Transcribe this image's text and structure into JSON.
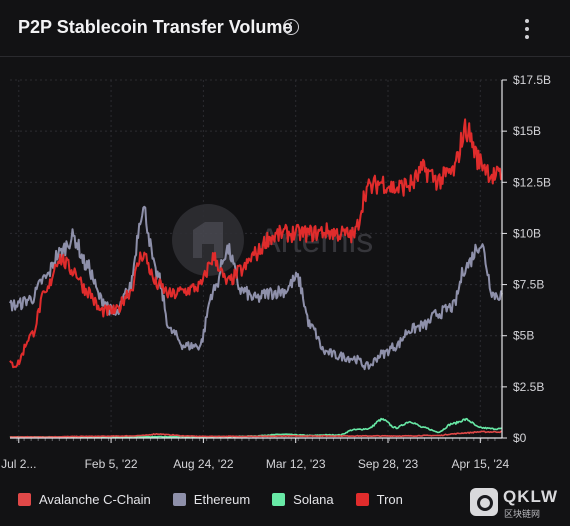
{
  "header": {
    "title": "P2P Stablecoin Transfer Volume",
    "info_icon": "info-circle-icon",
    "menu_icon": "more-vertical-icon"
  },
  "watermark": {
    "text": "Artemis",
    "badge": "QKLW",
    "badge_sub": "区块链网"
  },
  "chart_data": {
    "type": "line",
    "title": "P2P Stablecoin Transfer Volume",
    "x_ticks": [
      "Jul 2...",
      "Feb 5, '22",
      "Aug 24, '22",
      "Mar 12, '23",
      "Sep 28, '23",
      "Apr 15, '24"
    ],
    "x_tick_dates": [
      "2021-07-20",
      "2022-02-05",
      "2022-08-24",
      "2023-03-12",
      "2023-09-28",
      "2024-04-15"
    ],
    "x_range": [
      "2021-07-01",
      "2024-06-01"
    ],
    "y_ticks": [
      "$0",
      "$2.5B",
      "$5B",
      "$7.5B",
      "$10B",
      "$12.5B",
      "$15B",
      "$17.5B"
    ],
    "ylim": [
      0,
      17.5
    ],
    "y_unit": "$B",
    "grid": true,
    "legend_position": "bottom-left",
    "x": [
      "2021-07",
      "2021-08",
      "2021-09",
      "2021-10",
      "2021-11",
      "2021-12",
      "2022-01",
      "2022-02",
      "2022-03",
      "2022-04",
      "2022-05",
      "2022-06",
      "2022-07",
      "2022-08",
      "2022-09",
      "2022-10",
      "2022-11",
      "2022-12",
      "2023-01",
      "2023-02",
      "2023-03",
      "2023-04",
      "2023-05",
      "2023-06",
      "2023-07",
      "2023-08",
      "2023-09",
      "2023-10",
      "2023-11",
      "2023-12",
      "2024-01",
      "2024-02",
      "2024-03",
      "2024-04",
      "2024-05"
    ],
    "series": [
      {
        "name": "Avalanche C-Chain",
        "color": "#e04848",
        "values": [
          0.05,
          0.05,
          0.05,
          0.06,
          0.07,
          0.08,
          0.08,
          0.09,
          0.1,
          0.12,
          0.2,
          0.15,
          0.1,
          0.08,
          0.08,
          0.08,
          0.08,
          0.08,
          0.08,
          0.1,
          0.1,
          0.1,
          0.1,
          0.1,
          0.1,
          0.1,
          0.1,
          0.1,
          0.1,
          0.12,
          0.12,
          0.2,
          0.25,
          0.3,
          0.3
        ]
      },
      {
        "name": "Ethereum",
        "color": "#8e90aa",
        "values": [
          6.5,
          6.8,
          7.8,
          9.0,
          9.8,
          8.4,
          6.8,
          6.0,
          7.2,
          11.2,
          8.0,
          5.2,
          4.5,
          4.5,
          7.2,
          9.2,
          7.2,
          6.8,
          7.1,
          7.2,
          7.8,
          5.4,
          4.2,
          4.0,
          3.9,
          3.5,
          4.1,
          4.5,
          5.3,
          5.5,
          6.1,
          6.4,
          8.4,
          9.5,
          7.0
        ]
      },
      {
        "name": "Solana",
        "color": "#68e9a6",
        "values": [
          0.05,
          0.05,
          0.05,
          0.05,
          0.05,
          0.06,
          0.06,
          0.06,
          0.06,
          0.06,
          0.06,
          0.06,
          0.06,
          0.06,
          0.06,
          0.07,
          0.08,
          0.1,
          0.15,
          0.18,
          0.15,
          0.12,
          0.15,
          0.15,
          0.4,
          0.45,
          0.9,
          0.5,
          0.8,
          0.5,
          0.3,
          0.7,
          0.9,
          0.5,
          0.45
        ]
      },
      {
        "name": "Tron",
        "color": "#e02c2c",
        "values": [
          3.6,
          5.0,
          7.0,
          8.8,
          8.2,
          7.2,
          6.2,
          6.2,
          7.1,
          9.0,
          7.5,
          7.0,
          7.2,
          7.4,
          8.8,
          7.6,
          8.2,
          9.0,
          9.8,
          10.0,
          10.0,
          10.0,
          10.1,
          10.0,
          9.9,
          12.2,
          12.5,
          12.2,
          12.4,
          13.1,
          12.6,
          13.0,
          15.1,
          13.5,
          12.8
        ]
      }
    ]
  }
}
